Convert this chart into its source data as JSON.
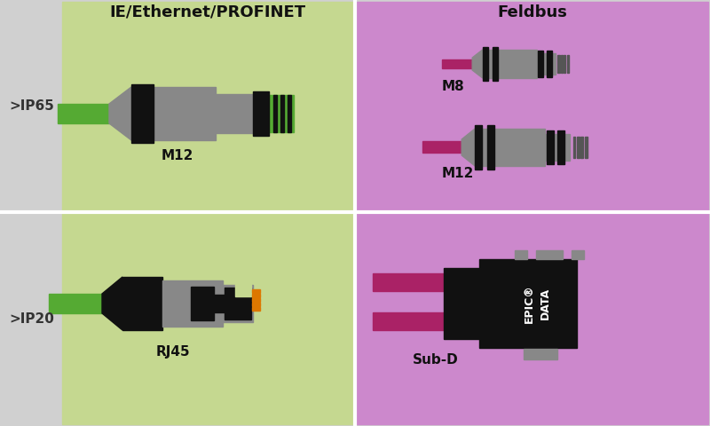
{
  "bg_color": "#d0d0d0",
  "green_bg": "#c5d890",
  "purple_bg": "#cc88cc",
  "gray_connector": "#888888",
  "dark_gray": "#555555",
  "black": "#111111",
  "green_cable": "#55aa33",
  "purple_cable": "#aa2266",
  "orange": "#dd7700",
  "title_green": "IE/Ethernet/PROFINET",
  "title_purple": "Feldbus",
  "label_ip65": ">IP65",
  "label_ip20": ">IP20",
  "label_m12_green": "M12",
  "label_m8": "M8",
  "label_m12_purple": "M12",
  "label_rj45": "RJ45",
  "label_subd": "Sub-D",
  "epic_text": "EPIC®\nDATA"
}
